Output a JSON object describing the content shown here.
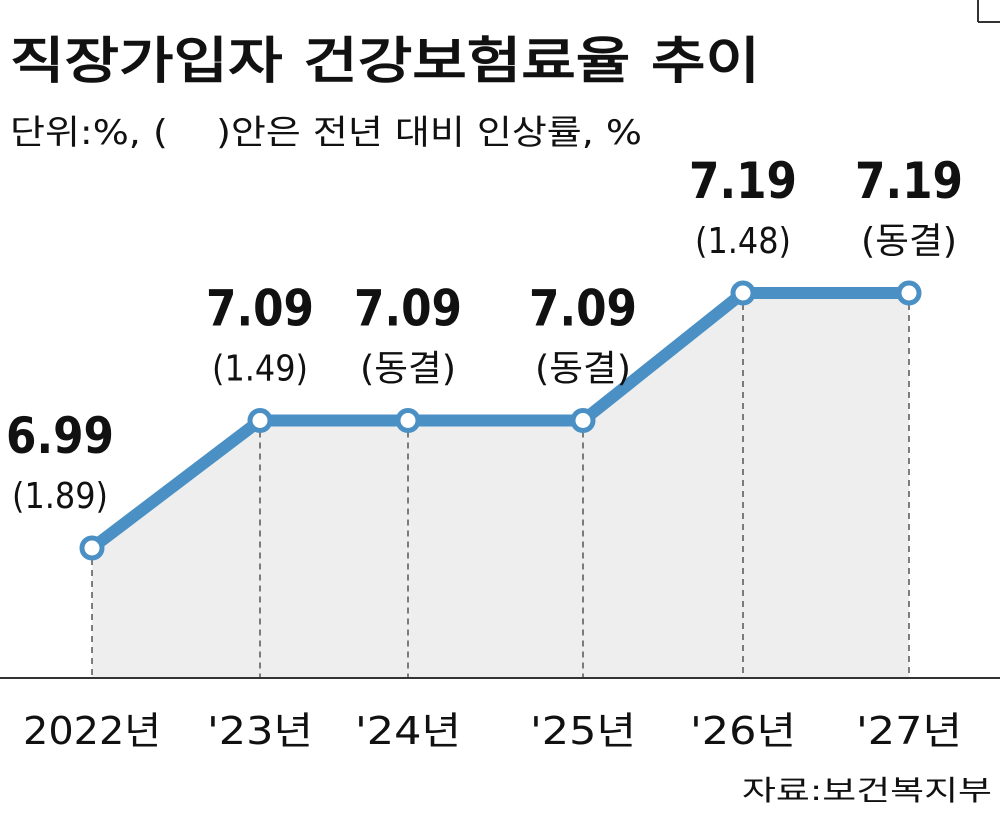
{
  "chart_data": {
    "type": "line",
    "title": "직장가입자 건강보험료율 추이",
    "subtitle": "단위:%, (    )안은 전년 대비 인상률, %",
    "categories": [
      "2022년",
      "'23년",
      "'24년",
      "'25년",
      "'26년",
      "'27년"
    ],
    "series": [
      {
        "values": [
          6.99,
          7.09,
          7.09,
          7.09,
          7.19,
          7.19
        ]
      }
    ],
    "value_labels": [
      "6.99",
      "7.09",
      "7.09",
      "7.09",
      "7.19",
      "7.19"
    ],
    "change_labels": [
      "(1.89)",
      "(1.49)",
      "(동결)",
      "(동결)",
      "(1.48)",
      "(동결)"
    ],
    "source": "자료:보건복지부",
    "area_fill": true,
    "grid": false,
    "colors": {
      "line": "#4a90c4",
      "marker_fill": "#ffffff",
      "area": "#eeeeee",
      "guide": "#555555",
      "text": "#111111"
    }
  }
}
